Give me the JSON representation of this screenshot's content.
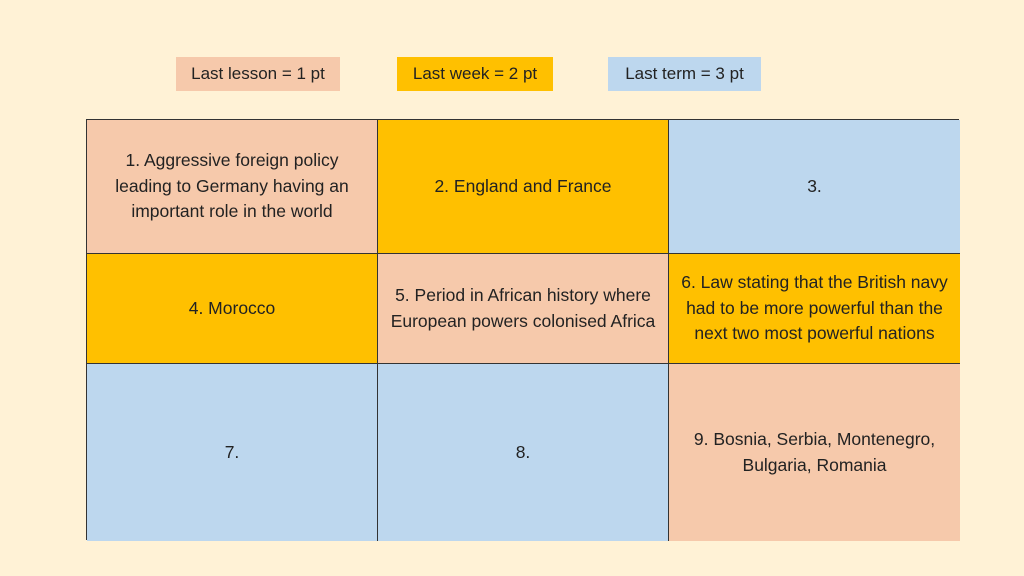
{
  "colors": {
    "background": "#FFF2D6",
    "one_pt": "#F6C9AB",
    "two_pt": "#FFC000",
    "three_pt": "#BDD7EE"
  },
  "legend": [
    {
      "label": "Last lesson = 1 pt",
      "color": "#F6C9AB"
    },
    {
      "label": "Last week = 2 pt",
      "color": "#FFC000"
    },
    {
      "label": "Last term = 3 pt",
      "color": "#BDD7EE"
    }
  ],
  "cells": [
    {
      "text": "1. Aggressive foreign policy leading to Germany having an important role in the world",
      "color": "#F6C9AB"
    },
    {
      "text": "2. England and France",
      "color": "#FFC000"
    },
    {
      "text": "3.",
      "color": "#BDD7EE"
    },
    {
      "text": "4. Morocco",
      "color": "#FFC000"
    },
    {
      "text": "5. Period in African history where European powers colonised Africa",
      "color": "#F6C9AB"
    },
    {
      "text": "6. Law stating that the British navy had to be more powerful than the next two most powerful nations",
      "color": "#FFC000"
    },
    {
      "text": "7.",
      "color": "#BDD7EE"
    },
    {
      "text": "8.",
      "color": "#BDD7EE"
    },
    {
      "text": "9. Bosnia, Serbia, Montenegro, Bulgaria, Romania",
      "color": "#F6C9AB"
    }
  ]
}
